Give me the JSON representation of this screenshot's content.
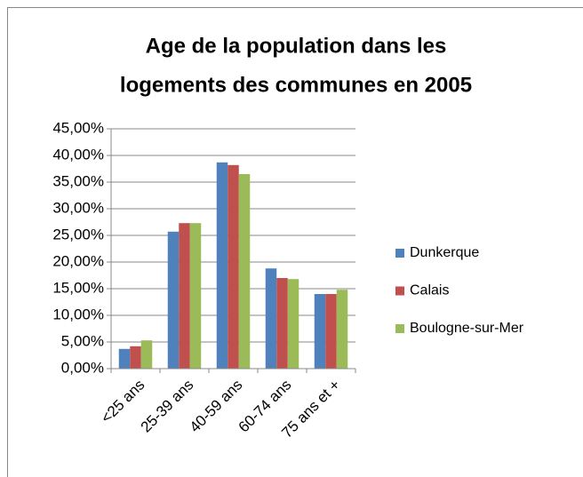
{
  "chart_data": {
    "type": "bar",
    "title": [
      "Age de la population dans les",
      "logements des communes en 2005"
    ],
    "categories": [
      "<25 ans",
      "25-39 ans",
      "40-59 ans",
      "60-74 ans",
      "75 ans et +"
    ],
    "series": [
      {
        "name": "Dunkerque",
        "color": "#4f81bd",
        "values": [
          3.7,
          25.7,
          38.7,
          18.8,
          14.0
        ]
      },
      {
        "name": "Calais",
        "color": "#c0504d",
        "values": [
          4.2,
          27.3,
          38.2,
          17.0,
          14.0
        ]
      },
      {
        "name": "Boulogne-sur-Mer",
        "color": "#9bbb59",
        "values": [
          5.3,
          27.3,
          36.5,
          16.8,
          14.8
        ]
      }
    ],
    "ylim": [
      0,
      45
    ],
    "yticks": [
      {
        "value": 0,
        "label": "0,00%"
      },
      {
        "value": 5,
        "label": "5,00%"
      },
      {
        "value": 10,
        "label": "10,00%"
      },
      {
        "value": 15,
        "label": "15,00%"
      },
      {
        "value": 20,
        "label": "20,00%"
      },
      {
        "value": 25,
        "label": "25,00%"
      },
      {
        "value": 30,
        "label": "30,00%"
      },
      {
        "value": 35,
        "label": "35,00%"
      },
      {
        "value": 40,
        "label": "40,00%"
      },
      {
        "value": 45,
        "label": "45,00%"
      }
    ],
    "grid": true,
    "legend": "right"
  }
}
